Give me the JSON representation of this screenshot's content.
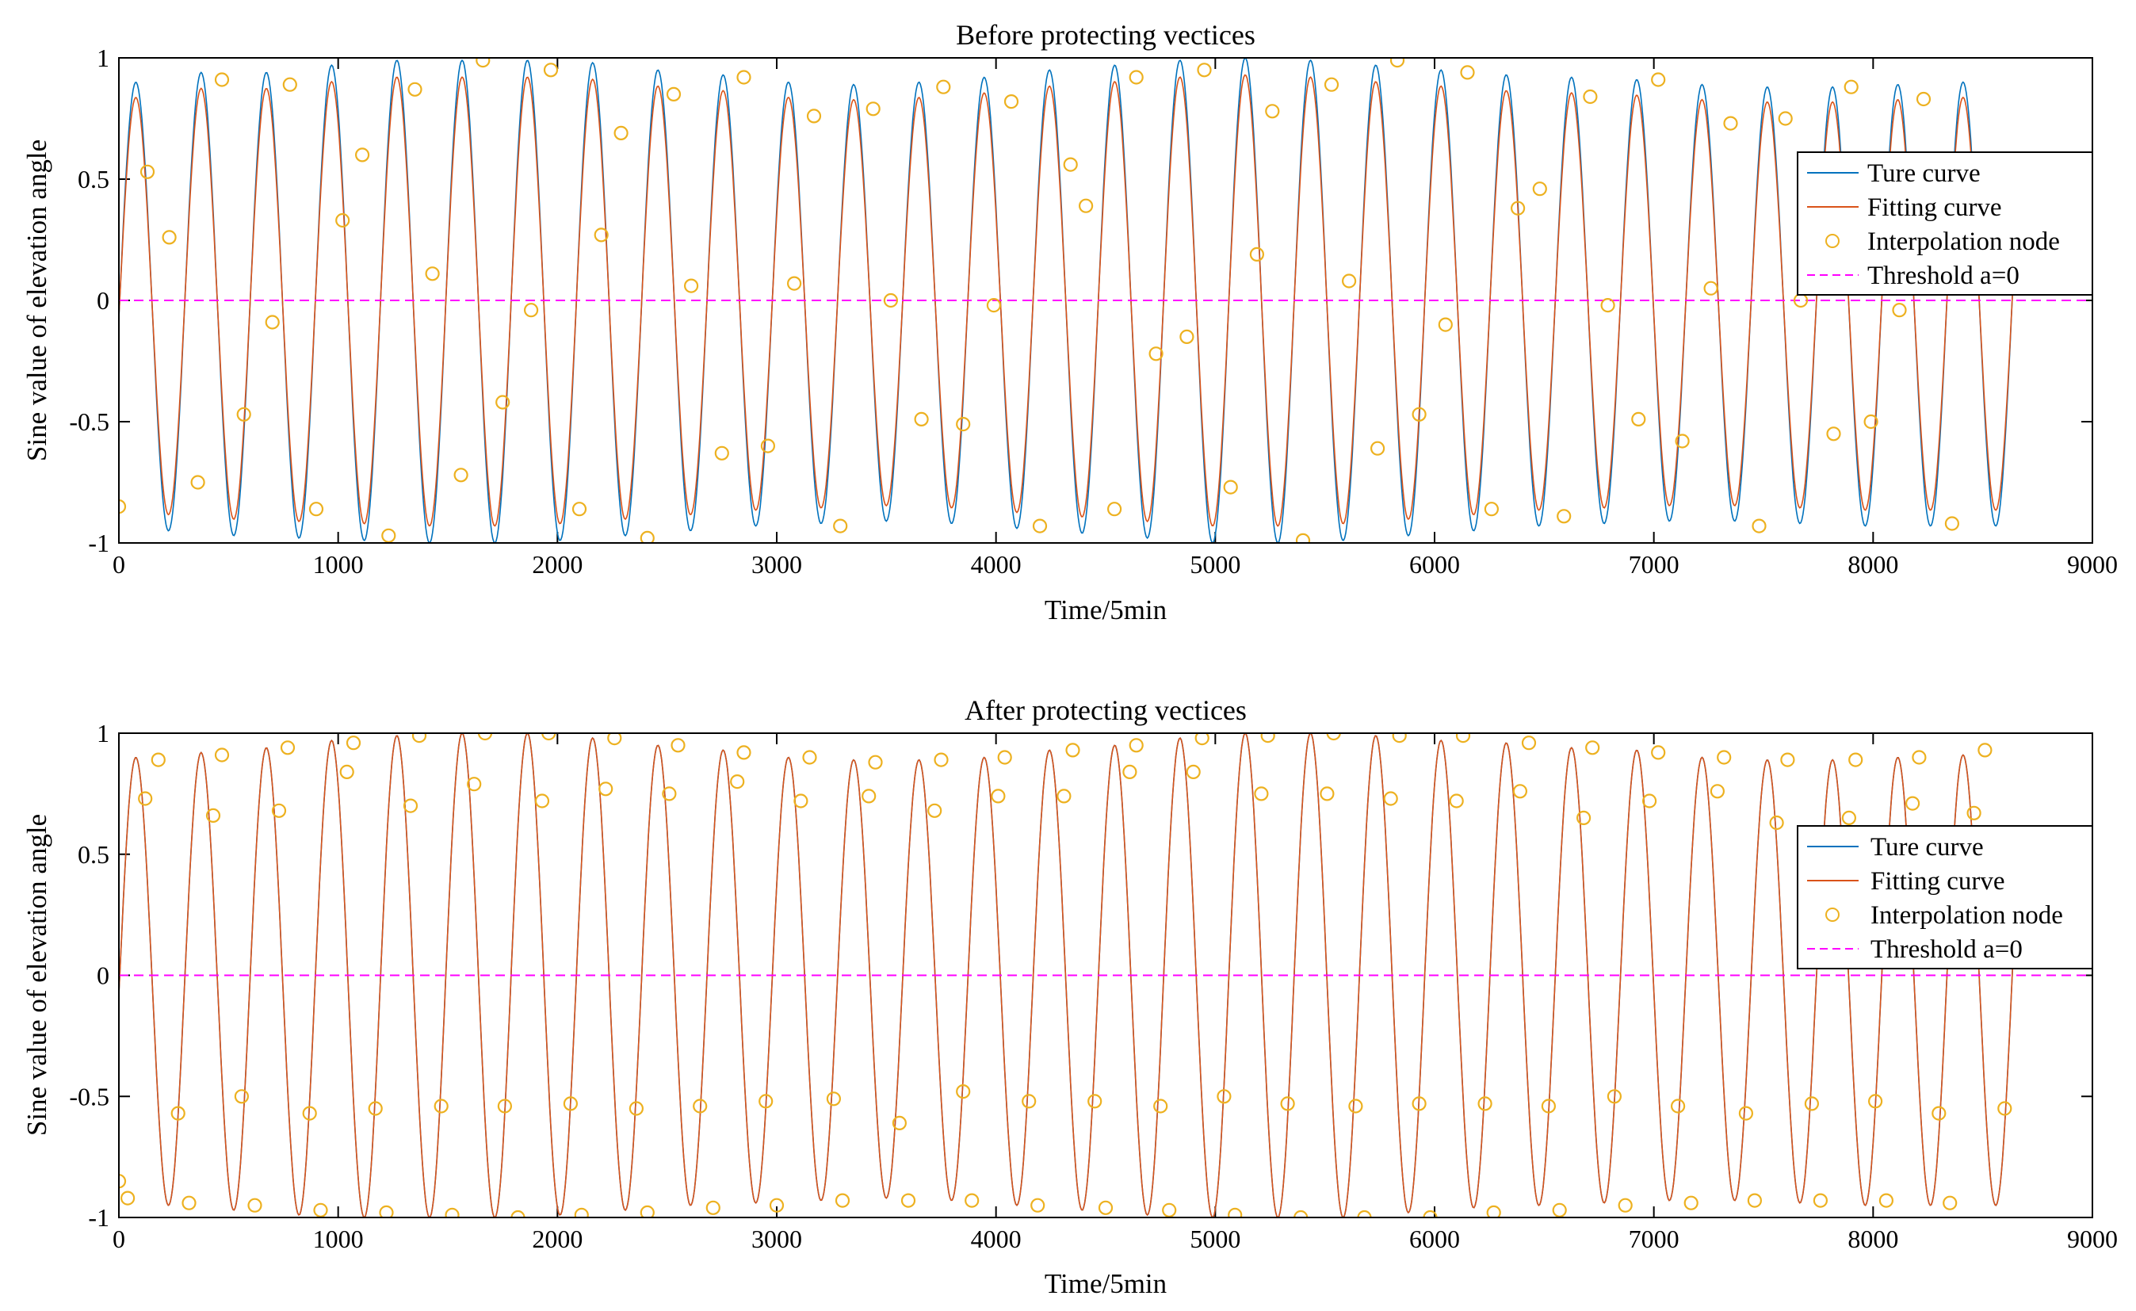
{
  "figure": {
    "true_color": "#0072BD",
    "fit_color": "#D95319",
    "node_color": "#EDB120",
    "threshold_color": "#FF00FF"
  },
  "chart_data": [
    {
      "type": "line",
      "title": "Before protecting vectices",
      "xlabel": "Time/5min",
      "ylabel": "Sine value of elevation angle",
      "xlim": [
        0,
        9000
      ],
      "ylim": [
        -1,
        1
      ],
      "xticks": [
        "0",
        "1000",
        "2000",
        "3000",
        "4000",
        "5000",
        "6000",
        "7000",
        "8000",
        "9000"
      ],
      "yticks": [
        "-1",
        "-0.5",
        "0",
        "0.5",
        "1"
      ],
      "legend": [
        "Ture curve",
        "Fitting curve",
        "Interpolation node",
        "Threshold a=0"
      ],
      "legend_position": "right",
      "x_end": 8640,
      "period": 297.6,
      "threshold": 0,
      "peaks": [
        0.9,
        0.94,
        0.94,
        0.97,
        0.99,
        0.99,
        0.99,
        0.98,
        0.95,
        0.93,
        0.9,
        0.89,
        0.9,
        0.92,
        0.95,
        0.97,
        0.99,
        1.0,
        0.99,
        0.97,
        0.95,
        0.93,
        0.92,
        0.91,
        0.89,
        0.88,
        0.88,
        0.89,
        0.9
      ],
      "troughs": [
        -0.93,
        -0.95,
        -0.97,
        -0.98,
        -0.99,
        -1.0,
        -1.0,
        -0.99,
        -0.97,
        -0.95,
        -0.93,
        -0.92,
        -0.91,
        -0.92,
        -0.94,
        -0.96,
        -0.98,
        -1.0,
        -1.0,
        -0.99,
        -0.97,
        -0.95,
        -0.93,
        -0.92,
        -0.91,
        -0.91,
        -0.92,
        -0.93
      ],
      "fit_peak_scale": 0.93,
      "nodes": [
        [
          0,
          -0.85
        ],
        [
          130,
          0.53
        ],
        [
          230,
          0.26
        ],
        [
          360,
          -0.75
        ],
        [
          470,
          0.91
        ],
        [
          570,
          -0.47
        ],
        [
          700,
          -0.09
        ],
        [
          780,
          0.89
        ],
        [
          900,
          -0.86
        ],
        [
          1020,
          0.33
        ],
        [
          1110,
          0.6
        ],
        [
          1230,
          -0.97
        ],
        [
          1350,
          0.87
        ],
        [
          1430,
          0.11
        ],
        [
          1560,
          -0.72
        ],
        [
          1660,
          0.99
        ],
        [
          1750,
          -0.42
        ],
        [
          1880,
          -0.04
        ],
        [
          1970,
          0.95
        ],
        [
          2100,
          -0.86
        ],
        [
          2200,
          0.27
        ],
        [
          2290,
          0.69
        ],
        [
          2410,
          -0.98
        ],
        [
          2530,
          0.85
        ],
        [
          2610,
          0.06
        ],
        [
          2750,
          -0.63
        ],
        [
          2850,
          0.92
        ],
        [
          2960,
          -0.6
        ],
        [
          3080,
          0.07
        ],
        [
          3170,
          0.76
        ],
        [
          3290,
          -0.93
        ],
        [
          3440,
          0.79
        ],
        [
          3520,
          0.0
        ],
        [
          3660,
          -0.49
        ],
        [
          3760,
          0.88
        ],
        [
          3850,
          -0.51
        ],
        [
          3990,
          -0.02
        ],
        [
          4070,
          0.82
        ],
        [
          4200,
          -0.93
        ],
        [
          4340,
          0.56
        ],
        [
          4410,
          0.39
        ],
        [
          4540,
          -0.86
        ],
        [
          4640,
          0.92
        ],
        [
          4730,
          -0.22
        ],
        [
          4870,
          -0.15
        ],
        [
          4950,
          0.95
        ],
        [
          5070,
          -0.77
        ],
        [
          5190,
          0.19
        ],
        [
          5260,
          0.78
        ],
        [
          5400,
          -0.99
        ],
        [
          5530,
          0.89
        ],
        [
          5610,
          0.08
        ],
        [
          5740,
          -0.61
        ],
        [
          5830,
          0.99
        ],
        [
          5930,
          -0.47
        ],
        [
          6050,
          -0.1
        ],
        [
          6150,
          0.94
        ],
        [
          6260,
          -0.86
        ],
        [
          6380,
          0.38
        ],
        [
          6480,
          0.46
        ],
        [
          6590,
          -0.89
        ],
        [
          6710,
          0.84
        ],
        [
          6790,
          -0.02
        ],
        [
          6930,
          -0.49
        ],
        [
          7020,
          0.91
        ],
        [
          7130,
          -0.58
        ],
        [
          7260,
          0.05
        ],
        [
          7350,
          0.73
        ],
        [
          7480,
          -0.93
        ],
        [
          7600,
          0.75
        ],
        [
          7670,
          0.0
        ],
        [
          7820,
          -0.55
        ],
        [
          7900,
          0.88
        ],
        [
          7990,
          -0.5
        ],
        [
          8120,
          -0.04
        ],
        [
          8230,
          0.83
        ],
        [
          8360,
          -0.92
        ]
      ]
    },
    {
      "type": "line",
      "title": "After protecting vectices",
      "xlabel": "Time/5min",
      "ylabel": "Sine value of elevation angle",
      "xlim": [
        0,
        9000
      ],
      "ylim": [
        -1,
        1
      ],
      "xticks": [
        "0",
        "1000",
        "2000",
        "3000",
        "4000",
        "5000",
        "6000",
        "7000",
        "8000",
        "9000"
      ],
      "yticks": [
        "-1",
        "-0.5",
        "0",
        "0.5",
        "1"
      ],
      "legend": [
        "Ture curve",
        "Fitting curve",
        "Interpolation node",
        "Threshold a=0"
      ],
      "legend_position": "right",
      "x_end": 8640,
      "period": 297.6,
      "threshold": 0,
      "peaks": [
        0.9,
        0.92,
        0.94,
        0.97,
        0.99,
        1.0,
        1.0,
        0.98,
        0.95,
        0.93,
        0.9,
        0.89,
        0.89,
        0.9,
        0.93,
        0.95,
        0.98,
        1.0,
        1.0,
        0.99,
        0.97,
        0.96,
        0.94,
        0.93,
        0.9,
        0.89,
        0.89,
        0.9,
        0.91
      ],
      "troughs": [
        -0.94,
        -0.95,
        -0.97,
        -0.99,
        -1.0,
        -1.0,
        -1.0,
        -0.99,
        -0.97,
        -0.95,
        -0.94,
        -0.93,
        -0.92,
        -0.93,
        -0.95,
        -0.97,
        -0.99,
        -1.0,
        -1.0,
        -1.0,
        -0.98,
        -0.96,
        -0.95,
        -0.94,
        -0.93,
        -0.93,
        -0.94,
        -0.95
      ],
      "fit_peak_scale": 1.0,
      "nodes": [
        [
          0,
          -0.85
        ],
        [
          40,
          -0.92
        ],
        [
          120,
          0.73
        ],
        [
          180,
          0.89
        ],
        [
          270,
          -0.57
        ],
        [
          320,
          -0.94
        ],
        [
          430,
          0.66
        ],
        [
          470,
          0.91
        ],
        [
          560,
          -0.5
        ],
        [
          620,
          -0.95
        ],
        [
          730,
          0.68
        ],
        [
          770,
          0.94
        ],
        [
          870,
          -0.57
        ],
        [
          920,
          -0.97
        ],
        [
          1040,
          0.84
        ],
        [
          1070,
          0.96
        ],
        [
          1170,
          -0.55
        ],
        [
          1220,
          -0.98
        ],
        [
          1330,
          0.7
        ],
        [
          1370,
          0.99
        ],
        [
          1470,
          -0.54
        ],
        [
          1520,
          -0.99
        ],
        [
          1620,
          0.79
        ],
        [
          1670,
          1.0
        ],
        [
          1760,
          -0.54
        ],
        [
          1820,
          -1.0
        ],
        [
          1930,
          0.72
        ],
        [
          1960,
          1.0
        ],
        [
          2060,
          -0.53
        ],
        [
          2110,
          -0.99
        ],
        [
          2220,
          0.77
        ],
        [
          2260,
          0.98
        ],
        [
          2360,
          -0.55
        ],
        [
          2410,
          -0.98
        ],
        [
          2510,
          0.75
        ],
        [
          2550,
          0.95
        ],
        [
          2650,
          -0.54
        ],
        [
          2710,
          -0.96
        ],
        [
          2820,
          0.8
        ],
        [
          2850,
          0.92
        ],
        [
          2950,
          -0.52
        ],
        [
          3000,
          -0.95
        ],
        [
          3110,
          0.72
        ],
        [
          3150,
          0.9
        ],
        [
          3260,
          -0.51
        ],
        [
          3300,
          -0.93
        ],
        [
          3420,
          0.74
        ],
        [
          3450,
          0.88
        ],
        [
          3560,
          -0.61
        ],
        [
          3600,
          -0.93
        ],
        [
          3720,
          0.68
        ],
        [
          3750,
          0.89
        ],
        [
          3850,
          -0.48
        ],
        [
          3890,
          -0.93
        ],
        [
          4010,
          0.74
        ],
        [
          4040,
          0.9
        ],
        [
          4150,
          -0.52
        ],
        [
          4190,
          -0.95
        ],
        [
          4310,
          0.74
        ],
        [
          4350,
          0.93
        ],
        [
          4450,
          -0.52
        ],
        [
          4500,
          -0.96
        ],
        [
          4610,
          0.84
        ],
        [
          4640,
          0.95
        ],
        [
          4750,
          -0.54
        ],
        [
          4790,
          -0.97
        ],
        [
          4900,
          0.84
        ],
        [
          4940,
          0.98
        ],
        [
          5040,
          -0.5
        ],
        [
          5090,
          -0.99
        ],
        [
          5210,
          0.75
        ],
        [
          5240,
          0.99
        ],
        [
          5330,
          -0.53
        ],
        [
          5390,
          -1.0
        ],
        [
          5510,
          0.75
        ],
        [
          5540,
          1.0
        ],
        [
          5640,
          -0.54
        ],
        [
          5680,
          -1.0
        ],
        [
          5800,
          0.73
        ],
        [
          5840,
          0.99
        ],
        [
          5930,
          -0.53
        ],
        [
          5980,
          -1.0
        ],
        [
          6100,
          0.72
        ],
        [
          6130,
          0.99
        ],
        [
          6230,
          -0.53
        ],
        [
          6270,
          -0.98
        ],
        [
          6390,
          0.76
        ],
        [
          6430,
          0.96
        ],
        [
          6520,
          -0.54
        ],
        [
          6570,
          -0.97
        ],
        [
          6680,
          0.65
        ],
        [
          6720,
          0.94
        ],
        [
          6820,
          -0.5
        ],
        [
          6870,
          -0.95
        ],
        [
          6980,
          0.72
        ],
        [
          7020,
          0.92
        ],
        [
          7110,
          -0.54
        ],
        [
          7170,
          -0.94
        ],
        [
          7290,
          0.76
        ],
        [
          7320,
          0.9
        ],
        [
          7420,
          -0.57
        ],
        [
          7460,
          -0.93
        ],
        [
          7560,
          0.63
        ],
        [
          7610,
          0.89
        ],
        [
          7720,
          -0.53
        ],
        [
          7760,
          -0.93
        ],
        [
          7890,
          0.65
        ],
        [
          7920,
          0.89
        ],
        [
          8010,
          -0.52
        ],
        [
          8060,
          -0.93
        ],
        [
          8180,
          0.71
        ],
        [
          8210,
          0.9
        ],
        [
          8300,
          -0.57
        ],
        [
          8350,
          -0.94
        ],
        [
          8460,
          0.67
        ],
        [
          8510,
          0.93
        ],
        [
          8600,
          -0.55
        ]
      ]
    }
  ]
}
